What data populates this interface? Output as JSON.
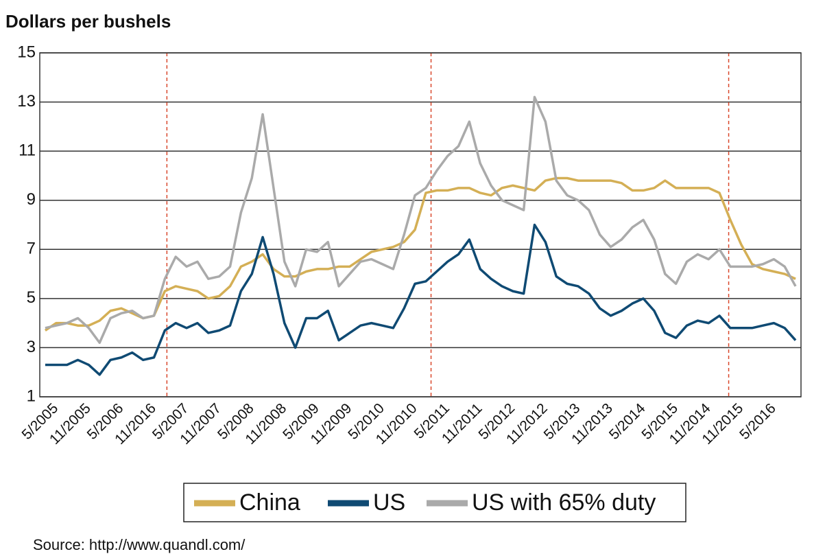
{
  "chart_data": {
    "type": "line",
    "title": "Dollars per bushels",
    "source": "Source: http://www.quandl.com/",
    "categories": [
      null,
      "5/2005",
      null,
      null,
      "11/2005",
      null,
      null,
      "5/2006",
      null,
      null,
      "11/2016",
      null,
      null,
      "5/2007",
      null,
      null,
      "11/2007",
      null,
      null,
      "5/2008",
      null,
      null,
      "11/2008",
      null,
      null,
      "5/2009",
      null,
      null,
      "11/2009",
      null,
      null,
      "5/2010",
      null,
      null,
      "11/2010",
      null,
      null,
      "5/2011",
      null,
      null,
      "11/2011",
      null,
      null,
      "5/2012",
      null,
      null,
      "11/2012",
      null,
      null,
      "5/2013",
      null,
      null,
      "11/2013",
      null,
      null,
      "5/2014",
      null,
      null,
      "5/2015",
      null,
      null,
      "11/2014",
      null,
      null,
      "11/2015",
      null,
      null,
      "5/2016",
      null,
      null
    ],
    "series": [
      {
        "name": "China",
        "color": "#d4af55",
        "values": [
          3.7,
          4.0,
          4.0,
          3.9,
          3.9,
          4.1,
          4.5,
          4.6,
          4.4,
          4.2,
          4.3,
          5.3,
          5.5,
          5.4,
          5.3,
          5.0,
          5.1,
          5.5,
          6.3,
          6.5,
          6.8,
          6.2,
          5.9,
          5.9,
          6.1,
          6.2,
          6.2,
          6.3,
          6.3,
          6.6,
          6.9,
          7.0,
          7.1,
          7.3,
          7.8,
          9.3,
          9.4,
          9.4,
          9.5,
          9.5,
          9.3,
          9.2,
          9.5,
          9.6,
          9.5,
          9.4,
          9.8,
          9.9,
          9.9,
          9.8,
          9.8,
          9.8,
          9.8,
          9.7,
          9.4,
          9.4,
          9.5,
          9.8,
          9.5,
          9.5,
          9.5,
          9.5,
          9.3,
          8.2,
          7.2,
          6.4,
          6.2,
          6.1,
          6.0,
          5.8
        ]
      },
      {
        "name": "US",
        "color": "#0f4a73",
        "values": [
          2.3,
          2.3,
          2.3,
          2.5,
          2.3,
          1.9,
          2.5,
          2.6,
          2.8,
          2.5,
          2.6,
          3.7,
          4.0,
          3.8,
          4.0,
          3.6,
          3.7,
          3.9,
          5.3,
          6.0,
          7.5,
          6.0,
          4.0,
          3.0,
          4.2,
          4.2,
          4.5,
          3.3,
          3.6,
          3.9,
          4.0,
          3.9,
          3.8,
          4.6,
          5.6,
          5.7,
          6.1,
          6.5,
          6.8,
          7.4,
          6.2,
          5.8,
          5.5,
          5.3,
          5.2,
          8.0,
          7.3,
          5.9,
          5.6,
          5.5,
          5.2,
          4.6,
          4.3,
          4.5,
          4.8,
          5.0,
          4.5,
          3.6,
          3.4,
          3.9,
          4.1,
          4.0,
          4.3,
          3.8,
          3.8,
          3.8,
          3.9,
          4.0,
          3.8,
          3.3
        ]
      },
      {
        "name": "US with 65% duty",
        "color": "#aaaaaa",
        "values": [
          3.8,
          3.9,
          4.0,
          4.2,
          3.8,
          3.2,
          4.2,
          4.4,
          4.5,
          4.2,
          4.3,
          5.8,
          6.7,
          6.3,
          6.5,
          5.8,
          5.9,
          6.3,
          8.5,
          9.9,
          12.5,
          9.5,
          6.5,
          5.5,
          7.0,
          6.9,
          7.3,
          5.5,
          6.0,
          6.5,
          6.6,
          6.4,
          6.2,
          7.6,
          9.2,
          9.5,
          10.2,
          10.8,
          11.2,
          12.2,
          10.5,
          9.6,
          9.0,
          8.8,
          8.6,
          13.2,
          12.2,
          9.8,
          9.2,
          9.0,
          8.6,
          7.6,
          7.1,
          7.4,
          7.9,
          8.2,
          7.4,
          6.0,
          5.6,
          6.5,
          6.8,
          6.6,
          7.0,
          6.3,
          6.3,
          6.3,
          6.4,
          6.6,
          6.3,
          5.5
        ]
      }
    ],
    "ylim": [
      1,
      15
    ],
    "yticks": [
      1,
      3,
      5,
      7,
      9,
      11,
      13,
      15
    ],
    "grid": true
  }
}
